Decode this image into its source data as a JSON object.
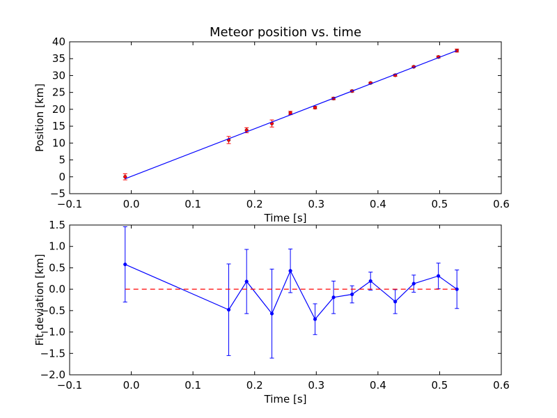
{
  "chart_data": [
    {
      "type": "scatter",
      "title": "Meteor position vs. time",
      "xlabel": "Time [s]",
      "ylabel": "Position [km]",
      "xlim": [
        -0.1,
        0.6
      ],
      "ylim": [
        -5,
        40
      ],
      "x_ticks": [
        "−0.1",
        "0.0",
        "0.1",
        "0.2",
        "0.3",
        "0.4",
        "0.5",
        "0.6"
      ],
      "x_tick_values": [
        -0.1,
        0.0,
        0.1,
        0.2,
        0.3,
        0.4,
        0.5,
        0.6
      ],
      "y_ticks": [
        "−5",
        "0",
        "5",
        "10",
        "15",
        "20",
        "25",
        "30",
        "35",
        "40"
      ],
      "y_tick_values": [
        -5,
        0,
        5,
        10,
        15,
        20,
        25,
        30,
        35,
        40
      ],
      "grid": false,
      "series": [
        {
          "kind": "points-with-errorbars",
          "color": "#ff0000",
          "x": [
            -0.01,
            0.158,
            0.187,
            0.228,
            0.258,
            0.298,
            0.328,
            0.358,
            0.388,
            0.428,
            0.458,
            0.498,
            0.528
          ],
          "y": [
            0.0,
            10.9,
            13.8,
            15.8,
            18.9,
            20.5,
            23.2,
            25.4,
            27.8,
            30.1,
            32.6,
            35.5,
            37.4
          ],
          "yerr": [
            0.9,
            1.05,
            0.75,
            1.05,
            0.5,
            0.35,
            0.35,
            0.3,
            0.2,
            0.3,
            0.2,
            0.3,
            0.45
          ]
        },
        {
          "kind": "fit-line",
          "color": "#0000ff",
          "x": [
            -0.01,
            0.528
          ],
          "y": [
            -0.58,
            37.4
          ]
        }
      ]
    },
    {
      "type": "line",
      "title": "",
      "xlabel": "Time [s]",
      "ylabel": "Fit deviation [km]",
      "xlim": [
        -0.1,
        0.6
      ],
      "ylim": [
        -2.0,
        1.5
      ],
      "x_ticks": [
        "−0.1",
        "0.0",
        "0.1",
        "0.2",
        "0.3",
        "0.4",
        "0.5",
        "0.6"
      ],
      "x_tick_values": [
        -0.1,
        0.0,
        0.1,
        0.2,
        0.3,
        0.4,
        0.5,
        0.6
      ],
      "y_ticks": [
        "−2.0",
        "−1.5",
        "−1.0",
        "−0.5",
        "0.0",
        "0.5",
        "1.0",
        "1.5"
      ],
      "y_tick_values": [
        -2.0,
        -1.5,
        -1.0,
        -0.5,
        0.0,
        0.5,
        1.0,
        1.5
      ],
      "grid": false,
      "series": [
        {
          "kind": "line-with-errorbars",
          "color": "#0000ff",
          "x": [
            -0.01,
            0.158,
            0.187,
            0.228,
            0.258,
            0.298,
            0.328,
            0.358,
            0.388,
            0.428,
            0.458,
            0.498,
            0.528
          ],
          "y": [
            0.58,
            -0.48,
            0.18,
            -0.57,
            0.43,
            -0.7,
            -0.19,
            -0.12,
            0.19,
            -0.29,
            0.13,
            0.31,
            0.0
          ],
          "yerr": [
            0.88,
            1.07,
            0.75,
            1.04,
            0.51,
            0.36,
            0.38,
            0.2,
            0.21,
            0.28,
            0.2,
            0.3,
            0.45
          ]
        },
        {
          "kind": "reference-line",
          "color": "#ff0000",
          "style": "dashed",
          "y": 0.0,
          "x": [
            -0.01,
            0.528
          ]
        }
      ]
    }
  ]
}
